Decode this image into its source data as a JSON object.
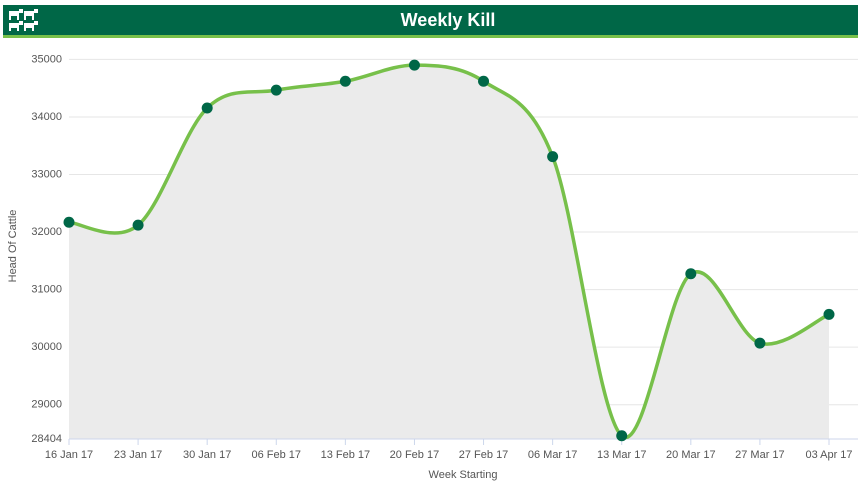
{
  "chart_data": {
    "type": "line",
    "title": "Weekly Kill",
    "x_label": "Week Starting",
    "y_label": "Head Of Cattle",
    "categories": [
      "16 Jan 17",
      "23 Jan 17",
      "30 Jan 17",
      "06 Feb 17",
      "13 Feb 17",
      "20 Feb 17",
      "27 Feb 17",
      "06 Mar 17",
      "13 Mar 17",
      "20 Mar 17",
      "27 Mar 17",
      "03 Apr 17"
    ],
    "series": [
      {
        "name": "Weekly Kill",
        "color": "#77c04a",
        "marker_color": "#006747",
        "area_color": "#ebebeb",
        "values": [
          32170,
          32120,
          34155,
          34466,
          34620,
          34900,
          34620,
          33310,
          28460,
          31275,
          30070,
          30570
        ]
      }
    ],
    "ylim": [
      28404,
      35250
    ],
    "yticks": [
      28404,
      29000,
      30000,
      31000,
      32000,
      33000,
      34000,
      35000
    ],
    "grid": true
  }
}
